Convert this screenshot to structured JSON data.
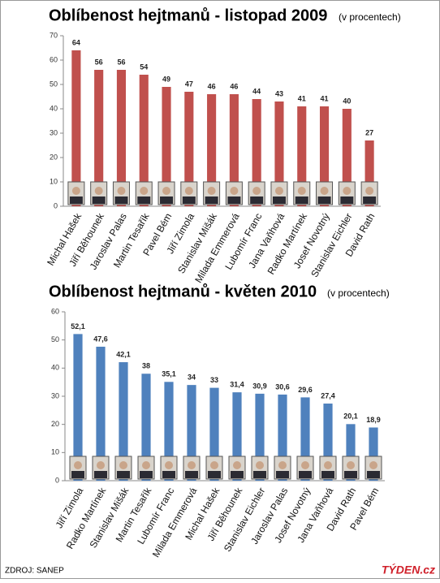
{
  "chart_data": [
    {
      "type": "bar",
      "title": "Oblíbenost hejtmanů - listopad 2009",
      "subtitle": "(v procentech)",
      "categories": [
        "Michal Hašek",
        "Jiří Běhounek",
        "Jaroslav Palas",
        "Martin Tesařík",
        "Pavel Bém",
        "Jiří Zimola",
        "Stanislav Mišák",
        "Milada Emmerová",
        "Lubomír Franc",
        "Jana Vaňhová",
        "Radko Martínek",
        "Josef Novotný",
        "Stanislav Eichler",
        "David Rath"
      ],
      "values": [
        64,
        56,
        56,
        54,
        49,
        47,
        46,
        46,
        44,
        43,
        41,
        41,
        40,
        27
      ],
      "color": "#c0504d",
      "ylim": [
        0,
        70
      ],
      "yticks": [
        0,
        10,
        20,
        30,
        40,
        50,
        60,
        70
      ],
      "grid": false
    },
    {
      "type": "bar",
      "title": "Oblíbenost hejtmanů - květen 2010",
      "subtitle": "(v procentech)",
      "categories": [
        "Jiří Zimola",
        "Radko Martínek",
        "Stanislav Mišák",
        "Martin Tesařík",
        "Lubomír Franc",
        "Milada Emmerová",
        "Michal Hašek",
        "Jiří Běhounek",
        "Stanislav Eichler",
        "Jaroslav Palas",
        "Josef Novotný",
        "Jana Vaňhová",
        "David Rath",
        "Pavel Bém"
      ],
      "values": [
        52.1,
        47.6,
        42.1,
        38,
        35.1,
        34,
        33,
        31.4,
        30.9,
        30.6,
        29.6,
        27.4,
        20.1,
        18.9
      ],
      "value_labels": [
        "52,1",
        "47,6",
        "42,1",
        "38",
        "35,1",
        "34",
        "33",
        "31,4",
        "30,9",
        "30,6",
        "29,6",
        "27,4",
        "20,1",
        "18,9"
      ],
      "color": "#4f81bd",
      "ylim": [
        0,
        60
      ],
      "yticks": [
        0,
        10,
        20,
        30,
        40,
        50,
        60
      ],
      "grid": false
    }
  ],
  "footer": {
    "source": "ZDROJ: SANEP",
    "brand": "TÝDEN.cz"
  }
}
